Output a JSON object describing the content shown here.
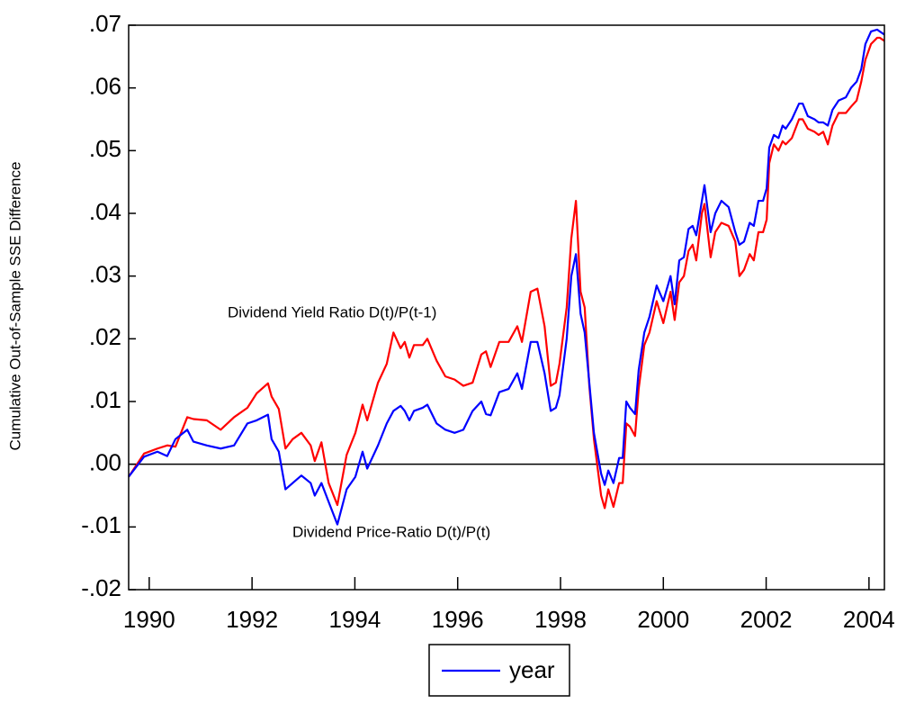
{
  "chart_data": {
    "type": "line",
    "y_label": "Cumulative Out-of-Sample SSE Difference",
    "annotations": [
      "Dividend Yield Ratio D(t)/P(t-1)",
      "Dividend Price-Ratio D(t)/P(t)"
    ],
    "x": [
      1989.6,
      1989.9,
      1990.16,
      1990.35,
      1990.51,
      1990.74,
      1990.86,
      1991.12,
      1991.39,
      1991.65,
      1991.91,
      1992.09,
      1992.31,
      1992.38,
      1992.52,
      1992.65,
      1992.79,
      1992.96,
      1993.14,
      1993.22,
      1993.35,
      1993.49,
      1993.66,
      1993.84,
      1994.01,
      1994.15,
      1994.24,
      1994.45,
      1994.62,
      1994.75,
      1994.89,
      1994.97,
      1995.06,
      1995.15,
      1995.32,
      1995.41,
      1995.59,
      1995.76,
      1995.94,
      1996.11,
      1996.29,
      1996.46,
      1996.55,
      1996.64,
      1996.81,
      1996.99,
      1997.16,
      1997.25,
      1997.42,
      1997.55,
      1997.69,
      1997.81,
      1997.91,
      1997.98,
      1998.12,
      1998.21,
      1998.3,
      1998.39,
      1998.47,
      1998.56,
      1998.65,
      1998.79,
      1998.86,
      1998.93,
      1999.03,
      1999.14,
      1999.21,
      1999.28,
      1999.35,
      1999.45,
      1999.52,
      1999.63,
      1999.73,
      1999.87,
      2000.0,
      2000.14,
      2000.22,
      2000.31,
      2000.4,
      2000.49,
      2000.57,
      2000.64,
      2000.75,
      2000.8,
      2000.92,
      2001.01,
      2001.13,
      2001.27,
      2001.4,
      2001.48,
      2001.57,
      2001.68,
      2001.76,
      2001.85,
      2001.94,
      2002.01,
      2002.06,
      2002.15,
      2002.24,
      2002.32,
      2002.38,
      2002.5,
      2002.64,
      2002.71,
      2002.81,
      2002.94,
      2003.02,
      2003.11,
      2003.2,
      2003.29,
      2003.41,
      2003.55,
      2003.65,
      2003.76,
      2003.85,
      2003.93,
      2004.04,
      2004.16,
      2004.21,
      2004.3
    ],
    "series": [
      {
        "name": "year",
        "color": "#0000ff",
        "values": [
          -0.002,
          0.0012,
          0.002,
          0.0013,
          0.004,
          0.0055,
          0.0036,
          0.003,
          0.0025,
          0.003,
          0.0065,
          0.007,
          0.0079,
          0.004,
          0.002,
          -0.004,
          -0.003,
          -0.0018,
          -0.003,
          -0.005,
          -0.003,
          -0.006,
          -0.0096,
          -0.004,
          -0.002,
          0.002,
          -0.0007,
          0.003,
          0.0065,
          0.0085,
          0.0093,
          0.0085,
          0.007,
          0.0085,
          0.009,
          0.0095,
          0.0065,
          0.0055,
          0.005,
          0.0055,
          0.0085,
          0.01,
          0.008,
          0.0078,
          0.0115,
          0.012,
          0.0145,
          0.012,
          0.0195,
          0.0195,
          0.0145,
          0.0085,
          0.009,
          0.011,
          0.02,
          0.03,
          0.0335,
          0.024,
          0.021,
          0.013,
          0.005,
          -0.0015,
          -0.0033,
          -0.001,
          -0.003,
          0.001,
          0.001,
          0.01,
          0.009,
          0.008,
          0.015,
          0.021,
          0.0235,
          0.0285,
          0.026,
          0.03,
          0.0255,
          0.0325,
          0.033,
          0.0375,
          0.038,
          0.0365,
          0.042,
          0.0445,
          0.037,
          0.04,
          0.042,
          0.041,
          0.037,
          0.035,
          0.0355,
          0.0385,
          0.038,
          0.042,
          0.042,
          0.044,
          0.0505,
          0.0525,
          0.052,
          0.054,
          0.0535,
          0.055,
          0.0575,
          0.0575,
          0.0555,
          0.055,
          0.0545,
          0.0545,
          0.054,
          0.0565,
          0.058,
          0.0585,
          0.06,
          0.061,
          0.063,
          0.067,
          0.069,
          0.0693,
          0.069,
          0.0685
        ]
      },
      {
        "color": "#ff0000",
        "values": [
          -0.002,
          0.0017,
          0.0025,
          0.003,
          0.0028,
          0.0075,
          0.0072,
          0.007,
          0.0055,
          0.0075,
          0.009,
          0.0113,
          0.0129,
          0.0108,
          0.0088,
          0.0025,
          0.004,
          0.005,
          0.003,
          0.0005,
          0.0035,
          -0.003,
          -0.0065,
          0.0015,
          0.005,
          0.0095,
          0.007,
          0.013,
          0.016,
          0.021,
          0.0185,
          0.0195,
          0.017,
          0.019,
          0.019,
          0.02,
          0.0165,
          0.014,
          0.0135,
          0.0125,
          0.013,
          0.0175,
          0.018,
          0.0155,
          0.0195,
          0.0195,
          0.022,
          0.0195,
          0.0275,
          0.028,
          0.022,
          0.0125,
          0.013,
          0.016,
          0.025,
          0.036,
          0.042,
          0.0275,
          0.025,
          0.0125,
          0.004,
          -0.005,
          -0.007,
          -0.004,
          -0.0068,
          -0.003,
          -0.003,
          0.0065,
          0.006,
          0.0045,
          0.012,
          0.019,
          0.021,
          0.026,
          0.0225,
          0.0275,
          0.023,
          0.029,
          0.03,
          0.034,
          0.035,
          0.0325,
          0.04,
          0.0415,
          0.033,
          0.037,
          0.0385,
          0.038,
          0.0355,
          0.03,
          0.031,
          0.0335,
          0.0325,
          0.037,
          0.037,
          0.039,
          0.048,
          0.051,
          0.05,
          0.0515,
          0.051,
          0.052,
          0.055,
          0.055,
          0.0535,
          0.053,
          0.0525,
          0.053,
          0.051,
          0.054,
          0.056,
          0.056,
          0.057,
          0.058,
          0.061,
          0.0645,
          0.067,
          0.068,
          0.068,
          0.0675
        ]
      }
    ],
    "xlim": [
      1989.6,
      2004.3
    ],
    "xticks": [
      1990,
      1992,
      1994,
      1996,
      1998,
      2000,
      2002,
      2004
    ],
    "ylim": [
      -0.02,
      0.07
    ],
    "yticks": [
      {
        "value": -0.02,
        "label": "-.02"
      },
      {
        "value": -0.01,
        "label": "-.01"
      },
      {
        "value": 0,
        "label": ".00"
      },
      {
        "value": 0.01,
        "label": ".01"
      },
      {
        "value": 0.02,
        "label": ".02"
      },
      {
        "value": 0.03,
        "label": ".03"
      },
      {
        "value": 0.04,
        "label": ".04"
      },
      {
        "value": 0.05,
        "label": ".05"
      },
      {
        "value": 0.06,
        "label": ".06"
      },
      {
        "value": 0.07,
        "label": ".07"
      }
    ],
    "hline": 0,
    "grid": false,
    "legend": "bottom"
  }
}
